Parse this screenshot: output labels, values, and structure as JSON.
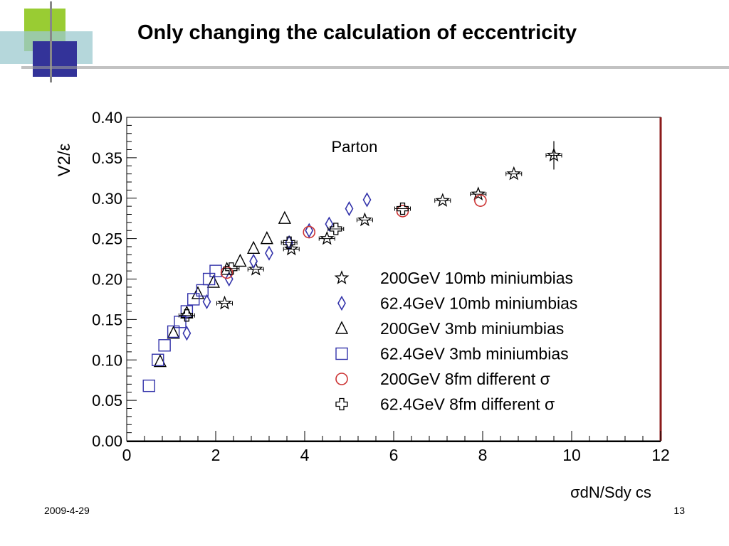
{
  "slide": {
    "title": "Only changing the calculation of eccentricity",
    "date": "2009-4-29",
    "page": "13"
  },
  "colors": {
    "deco_green": "#99cc33",
    "deco_blue": "#333399",
    "deco_teal": "#9ccacf",
    "frame_red": "#8b1a1a",
    "diamond": "#3333aa",
    "square": "#3333aa",
    "circle": "#cc3333"
  },
  "chart_data": {
    "type": "scatter",
    "title": "",
    "annotation": "Parton",
    "ylabel": "V2/ε",
    "xlabel": "σdN/Sdy cs",
    "xlim": [
      0,
      12
    ],
    "ylim": [
      0,
      0.4
    ],
    "xticks": [
      "0",
      "2",
      "4",
      "6",
      "8",
      "10",
      "12"
    ],
    "yticks": [
      "0.00",
      "0.05",
      "0.10",
      "0.15",
      "0.20",
      "0.25",
      "0.30",
      "0.35",
      "0.40"
    ],
    "legend_position": "bottom-right",
    "grid": false,
    "series": [
      {
        "name": "200GeV  10mb miniumbias",
        "marker": "star",
        "color": "#000000",
        "points": [
          [
            2.2,
            0.17
          ],
          [
            2.9,
            0.212
          ],
          [
            3.7,
            0.237
          ],
          [
            4.5,
            0.25
          ],
          [
            5.35,
            0.273
          ],
          [
            7.1,
            0.297
          ],
          [
            7.9,
            0.305
          ],
          [
            8.7,
            0.33
          ],
          [
            9.6,
            0.353
          ]
        ]
      },
      {
        "name": "62.4GeV 10mb miniumbias",
        "marker": "diamond",
        "color": "#3333aa",
        "points": [
          [
            1.35,
            0.133
          ],
          [
            1.8,
            0.172
          ],
          [
            2.3,
            0.2
          ],
          [
            2.85,
            0.222
          ],
          [
            3.2,
            0.232
          ],
          [
            3.65,
            0.245
          ],
          [
            4.1,
            0.26
          ],
          [
            4.55,
            0.268
          ],
          [
            5.0,
            0.287
          ],
          [
            5.4,
            0.298
          ]
        ]
      },
      {
        "name": "200GeV    3mb miniumbias",
        "marker": "triangle",
        "color": "#000000",
        "points": [
          [
            0.75,
            0.098
          ],
          [
            1.05,
            0.133
          ],
          [
            1.35,
            0.158
          ],
          [
            1.6,
            0.182
          ],
          [
            1.95,
            0.196
          ],
          [
            2.25,
            0.212
          ],
          [
            2.55,
            0.222
          ],
          [
            2.85,
            0.238
          ],
          [
            3.15,
            0.25
          ],
          [
            3.55,
            0.275
          ]
        ]
      },
      {
        "name": "62.4GeV   3mb miniumbias",
        "marker": "square",
        "color": "#3333aa",
        "points": [
          [
            0.5,
            0.068
          ],
          [
            0.7,
            0.1
          ],
          [
            0.85,
            0.118
          ],
          [
            1.05,
            0.135
          ],
          [
            1.2,
            0.147
          ],
          [
            1.35,
            0.16
          ],
          [
            1.5,
            0.175
          ],
          [
            1.7,
            0.186
          ],
          [
            1.85,
            0.2
          ],
          [
            2.0,
            0.21
          ]
        ]
      },
      {
        "name": "200GeV    8fm  different σ",
        "marker": "circle",
        "color": "#cc3333",
        "points": [
          [
            2.25,
            0.208
          ],
          [
            4.1,
            0.258
          ],
          [
            6.2,
            0.284
          ],
          [
            7.95,
            0.297
          ]
        ]
      },
      {
        "name": "62.4GeV   8fm  different σ",
        "marker": "cross",
        "color": "#000000",
        "points": [
          [
            1.35,
            0.155
          ],
          [
            2.35,
            0.213
          ],
          [
            3.65,
            0.245
          ],
          [
            4.7,
            0.262
          ],
          [
            6.2,
            0.287
          ]
        ]
      }
    ]
  }
}
